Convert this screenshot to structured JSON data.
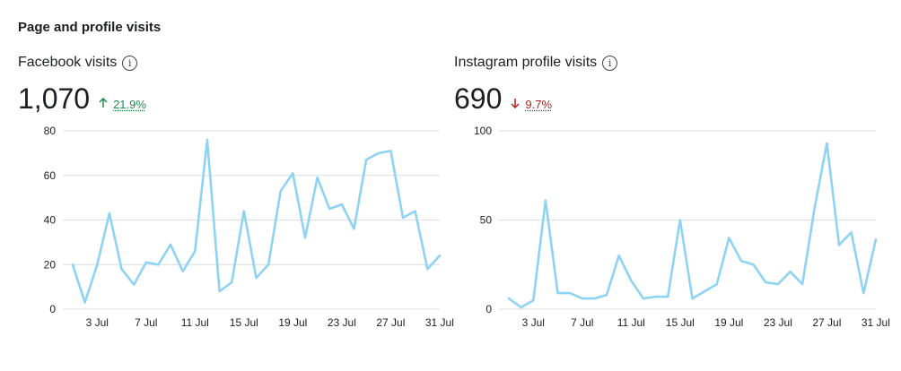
{
  "section": {
    "title": "Page and profile visits"
  },
  "facebook": {
    "label": "Facebook visits",
    "value": "1,070",
    "change": "21.9%",
    "direction": "up",
    "up_color": "#1e8a4c"
  },
  "instagram": {
    "label": "Instagram profile visits",
    "value": "690",
    "change": "9.7%",
    "direction": "down",
    "down_color": "#b3261e"
  },
  "chart_data": [
    {
      "type": "line",
      "x_ticks": [
        "3 Jul",
        "7 Jul",
        "11 Jul",
        "15 Jul",
        "19 Jul",
        "23 Jul",
        "27 Jul",
        "31 Jul"
      ],
      "y_ticks": [
        0,
        20,
        40,
        60,
        80
      ],
      "ylim": [
        0,
        80
      ],
      "grid": true,
      "line_color": "#8fd3f4",
      "series": [
        {
          "values": [
            20,
            3,
            20,
            43,
            18,
            11,
            21,
            20,
            29,
            17,
            26,
            76,
            8,
            12,
            44,
            14,
            20,
            53,
            61,
            32,
            59,
            45,
            47,
            36,
            67,
            70,
            71,
            41,
            44,
            18,
            24
          ]
        }
      ]
    },
    {
      "type": "line",
      "x_ticks": [
        "3 Jul",
        "7 Jul",
        "11 Jul",
        "15 Jul",
        "19 Jul",
        "23 Jul",
        "27 Jul",
        "31 Jul"
      ],
      "y_ticks": [
        0,
        50,
        100
      ],
      "ylim": [
        0,
        100
      ],
      "grid": true,
      "line_color": "#8fd3f4",
      "series": [
        {
          "values": [
            6,
            1,
            5,
            61,
            9,
            9,
            6,
            6,
            8,
            30,
            16,
            6,
            7,
            7,
            50,
            6,
            10,
            14,
            40,
            27,
            25,
            15,
            14,
            21,
            14,
            57,
            93,
            36,
            43,
            9,
            39
          ]
        }
      ]
    }
  ]
}
